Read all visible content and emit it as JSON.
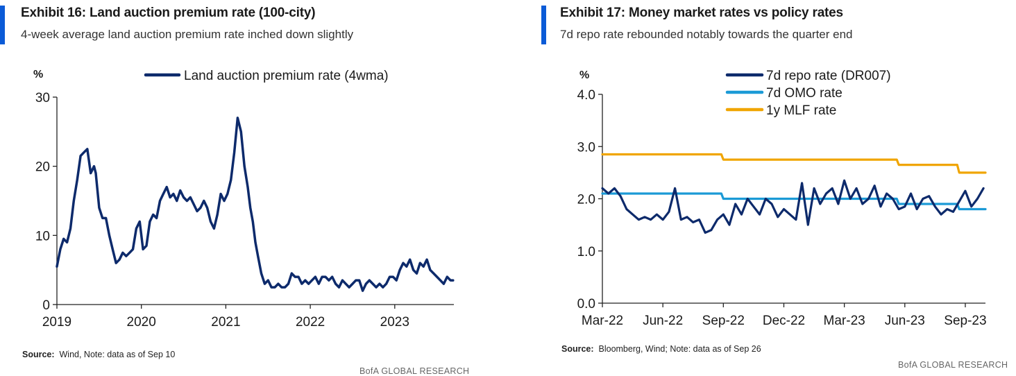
{
  "exhibit16": {
    "title": "Exhibit 16: Land auction premium rate (100-city)",
    "subtitle": "4-week average land auction premium rate inched down slightly",
    "source_label": "Source:",
    "source_text": "Wind, Note: data as of Sep 10",
    "brand": "BofA GLOBAL RESEARCH"
  },
  "exhibit17": {
    "title": "Exhibit 17: Money market rates vs policy rates",
    "subtitle": "7d repo rate rebounded notably towards the quarter end",
    "source_label": "Source:",
    "source_text": "Bloomberg, Wind; Note: data as of Sep 26",
    "brand": "BofA GLOBAL RESEARCH"
  },
  "chart_data": [
    {
      "type": "line",
      "title": "Land auction premium rate (100-city)",
      "ylabel": "%",
      "ylim": [
        0,
        30
      ],
      "yticks": [
        "0",
        "10",
        "20",
        "30"
      ],
      "xlim": [
        2019.0,
        2023.7
      ],
      "xticks": [
        2019,
        2020,
        2021,
        2022,
        2023
      ],
      "xticklabels": [
        "2019",
        "2020",
        "2021",
        "2022",
        "2023"
      ],
      "legend_position": "top",
      "color": "#0d2a6b",
      "series": [
        {
          "name": "Land auction premium rate (4wma)",
          "x": [
            2019.0,
            2019.04,
            2019.08,
            2019.12,
            2019.16,
            2019.2,
            2019.24,
            2019.28,
            2019.32,
            2019.36,
            2019.4,
            2019.44,
            2019.46,
            2019.5,
            2019.54,
            2019.58,
            2019.62,
            2019.66,
            2019.7,
            2019.74,
            2019.78,
            2019.82,
            2019.86,
            2019.9,
            2019.94,
            2019.98,
            2020.02,
            2020.06,
            2020.1,
            2020.14,
            2020.18,
            2020.22,
            2020.26,
            2020.3,
            2020.34,
            2020.38,
            2020.42,
            2020.46,
            2020.5,
            2020.54,
            2020.58,
            2020.62,
            2020.66,
            2020.7,
            2020.74,
            2020.78,
            2020.82,
            2020.86,
            2020.9,
            2020.94,
            2020.98,
            2021.02,
            2021.06,
            2021.1,
            2021.14,
            2021.18,
            2021.22,
            2021.26,
            2021.29,
            2021.32,
            2021.35,
            2021.38,
            2021.42,
            2021.46,
            2021.5,
            2021.54,
            2021.58,
            2021.62,
            2021.66,
            2021.7,
            2021.74,
            2021.78,
            2021.82,
            2021.86,
            2021.9,
            2021.94,
            2021.98,
            2022.02,
            2022.06,
            2022.1,
            2022.14,
            2022.18,
            2022.22,
            2022.26,
            2022.3,
            2022.34,
            2022.38,
            2022.42,
            2022.46,
            2022.5,
            2022.54,
            2022.58,
            2022.62,
            2022.66,
            2022.7,
            2022.74,
            2022.78,
            2022.82,
            2022.86,
            2022.9,
            2022.94,
            2022.98,
            2023.02,
            2023.06,
            2023.1,
            2023.14,
            2023.18,
            2023.22,
            2023.26,
            2023.3,
            2023.34,
            2023.38,
            2023.42,
            2023.46,
            2023.5,
            2023.54,
            2023.58,
            2023.62,
            2023.66,
            2023.69
          ],
          "values": [
            5.5,
            8,
            9.5,
            9,
            11,
            15,
            18,
            21.5,
            22,
            22.5,
            19,
            20,
            19,
            14,
            12.5,
            12.5,
            10,
            8,
            6,
            6.5,
            7.5,
            7,
            7.5,
            8,
            11,
            12,
            8,
            8.5,
            12,
            13,
            12.5,
            15,
            16,
            17,
            15.5,
            16,
            15,
            16.5,
            15.5,
            15,
            15.5,
            14.5,
            13.5,
            14,
            15,
            14,
            12,
            11,
            13,
            16,
            15,
            16,
            18,
            22,
            27,
            25,
            20,
            17,
            14,
            12,
            9,
            7,
            4.5,
            3,
            3.5,
            2.5,
            2.5,
            3,
            2.5,
            2.5,
            3,
            4.5,
            4,
            4,
            3,
            3.5,
            3,
            3.5,
            4,
            3,
            4,
            4,
            3.5,
            4,
            3,
            2.5,
            3.5,
            3,
            2.5,
            3,
            3.5,
            3.5,
            2,
            3,
            3.5,
            3,
            2.5,
            3,
            2.5,
            3,
            4,
            4,
            3.5,
            5,
            6,
            5.5,
            6.5,
            5,
            4.5,
            6,
            5.5,
            6.5,
            5,
            4.5,
            4,
            3.5,
            3,
            4,
            3.5,
            3.5
          ]
        }
      ]
    },
    {
      "type": "line",
      "title": "Money market rates vs policy rates",
      "ylabel": "%",
      "ylim": [
        0.0,
        4.0
      ],
      "yticks": [
        "0.0",
        "1.0",
        "2.0",
        "3.0",
        "4.0"
      ],
      "xlim": [
        0,
        19
      ],
      "xticks": [
        0,
        3,
        6,
        9,
        12,
        15,
        18
      ],
      "xticklabels": [
        "Mar-22",
        "Jun-22",
        "Sep-22",
        "Dec-22",
        "Mar-23",
        "Jun-23",
        "Sep-23"
      ],
      "x_unit": "months since Mar-22",
      "legend_position": "top",
      "series": [
        {
          "name": "7d repo rate (DR007)",
          "color": "#0d2a6b",
          "x": [
            0,
            0.3,
            0.6,
            0.9,
            1.2,
            1.5,
            1.8,
            2.1,
            2.4,
            2.7,
            3.0,
            3.3,
            3.6,
            3.9,
            4.2,
            4.5,
            4.8,
            5.1,
            5.4,
            5.7,
            6.0,
            6.3,
            6.6,
            6.9,
            7.2,
            7.5,
            7.8,
            8.1,
            8.4,
            8.7,
            9.0,
            9.3,
            9.6,
            9.9,
            10.2,
            10.5,
            10.8,
            11.1,
            11.4,
            11.7,
            12.0,
            12.3,
            12.6,
            12.9,
            13.2,
            13.5,
            13.8,
            14.1,
            14.4,
            14.7,
            15.0,
            15.3,
            15.6,
            15.9,
            16.2,
            16.5,
            16.8,
            17.1,
            17.4,
            17.7,
            18.0,
            18.3,
            18.6,
            18.9
          ],
          "values": [
            2.2,
            2.1,
            2.2,
            2.05,
            1.8,
            1.7,
            1.6,
            1.65,
            1.6,
            1.7,
            1.6,
            1.75,
            2.2,
            1.6,
            1.65,
            1.55,
            1.6,
            1.35,
            1.4,
            1.6,
            1.7,
            1.5,
            1.9,
            1.7,
            2.0,
            1.85,
            1.7,
            2.0,
            1.9,
            1.65,
            1.8,
            1.7,
            1.6,
            2.3,
            1.5,
            2.2,
            1.9,
            2.1,
            2.2,
            1.9,
            2.35,
            2.0,
            2.2,
            1.9,
            2.0,
            2.25,
            1.85,
            2.1,
            2.0,
            1.8,
            1.85,
            2.1,
            1.8,
            2.0,
            2.05,
            1.85,
            1.7,
            1.8,
            1.75,
            1.95,
            2.15,
            1.85,
            2.0,
            2.2
          ]
        },
        {
          "name": "7d OMO rate",
          "color": "#1b9ad6",
          "x": [
            0,
            5.9,
            6.0,
            14.6,
            14.7,
            17.6,
            17.7,
            19
          ],
          "values": [
            2.1,
            2.1,
            2.0,
            2.0,
            1.9,
            1.9,
            1.8,
            1.8
          ]
        },
        {
          "name": "1y MLF rate",
          "color": "#f0a500",
          "x": [
            0,
            5.9,
            6.0,
            14.6,
            14.7,
            17.6,
            17.7,
            19
          ],
          "values": [
            2.85,
            2.85,
            2.75,
            2.75,
            2.65,
            2.65,
            2.5,
            2.5
          ]
        }
      ]
    }
  ]
}
